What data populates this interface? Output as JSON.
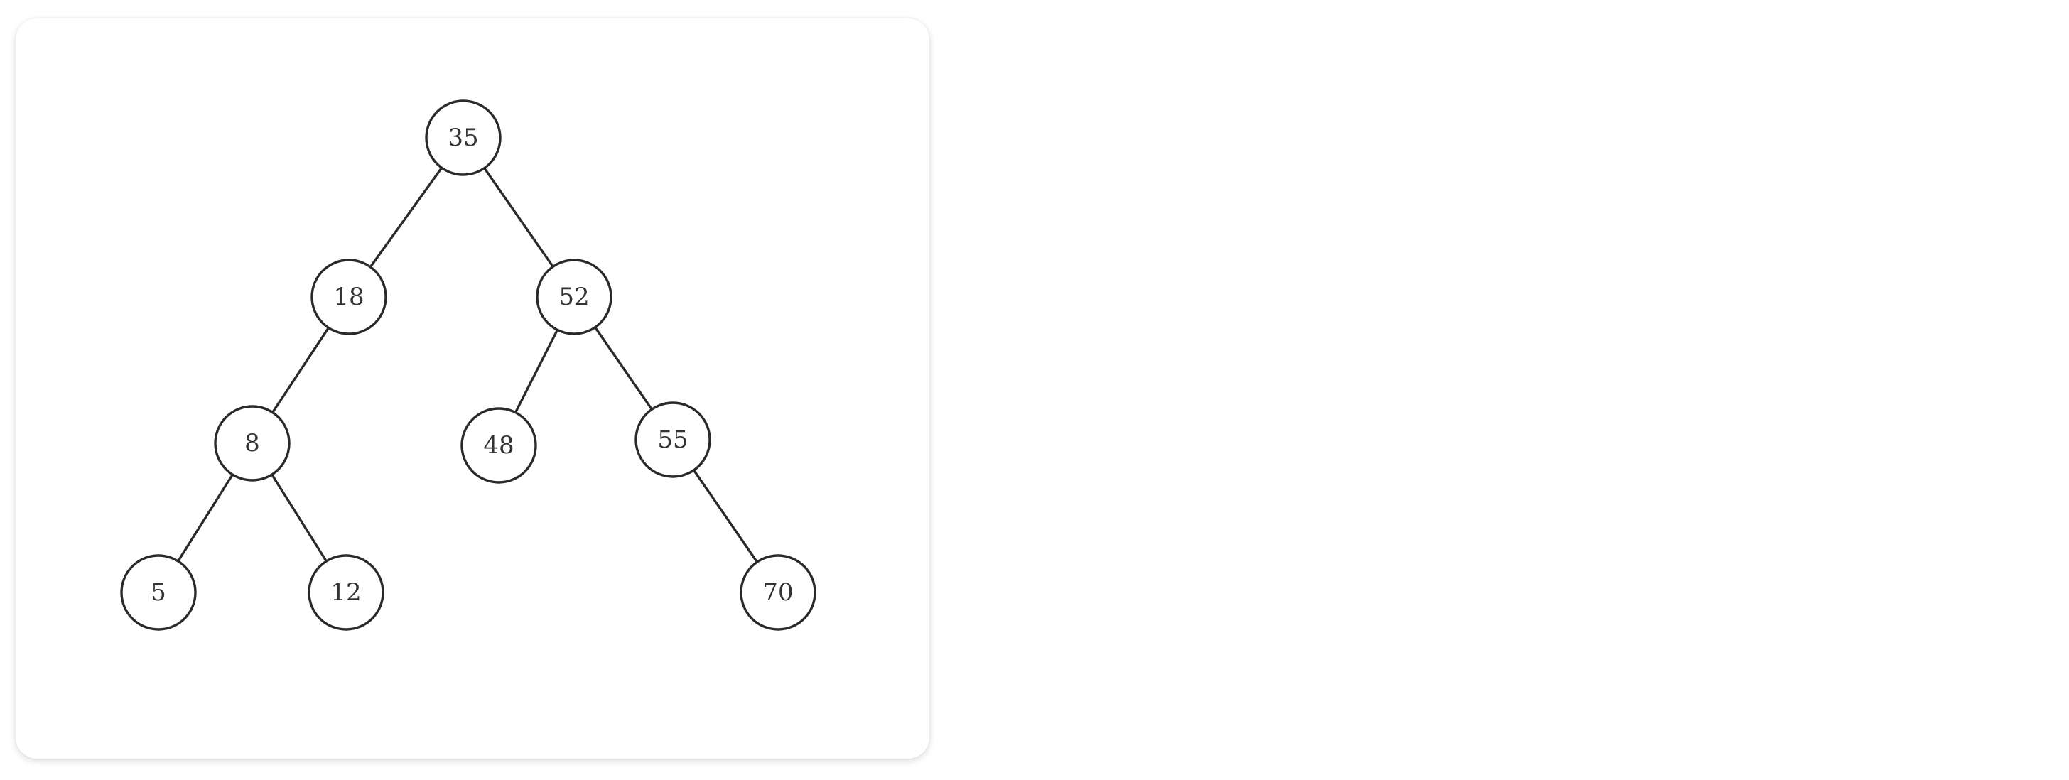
{
  "tree": {
    "root": "35",
    "nodes": [
      {
        "id": "n35",
        "label": "35"
      },
      {
        "id": "n18",
        "label": "18"
      },
      {
        "id": "n52",
        "label": "52"
      },
      {
        "id": "n8",
        "label": "8"
      },
      {
        "id": "n48",
        "label": "48"
      },
      {
        "id": "n55",
        "label": "55"
      },
      {
        "id": "n5",
        "label": "5"
      },
      {
        "id": "n12",
        "label": "12"
      },
      {
        "id": "n70",
        "label": "70"
      }
    ],
    "edges": [
      {
        "from": "n35",
        "to": "n18"
      },
      {
        "from": "n35",
        "to": "n52"
      },
      {
        "from": "n18",
        "to": "n8"
      },
      {
        "from": "n52",
        "to": "n48"
      },
      {
        "from": "n52",
        "to": "n55"
      },
      {
        "from": "n8",
        "to": "n5"
      },
      {
        "from": "n8",
        "to": "n12"
      },
      {
        "from": "n55",
        "to": "n70"
      }
    ]
  }
}
